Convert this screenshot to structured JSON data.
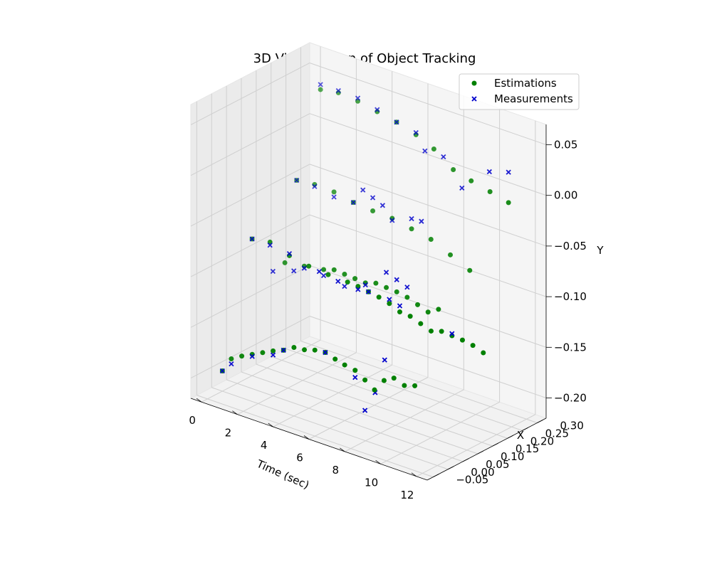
{
  "chart_data": {
    "type": "scatter",
    "projection": "3d",
    "title": "3D Visualization of Object Tracking",
    "xlabel": "Time (sec)",
    "ylabel": "X",
    "zlabel": "Y",
    "xlim": [
      -0.6,
      12.6
    ],
    "ylim": [
      -0.07,
      0.33
    ],
    "zlim": [
      -0.22,
      0.07
    ],
    "xticks": [
      "0",
      "2",
      "4",
      "6",
      "8",
      "10",
      "12"
    ],
    "yticks": [
      "−0.05",
      "0.00",
      "0.05",
      "0.10",
      "0.15",
      "0.20",
      "0.25",
      "0.30"
    ],
    "zticks": [
      "−0.20",
      "−0.15",
      "−0.10",
      "−0.05",
      "0.00",
      "0.05"
    ],
    "grid": true,
    "legend_position": "top-right",
    "colors": {
      "estimations": "#008000",
      "measurements": "#0000cc"
    },
    "series": [
      {
        "name": "Estimations",
        "marker": "circle",
        "points": [
          [
            0.0,
            0.0,
            -0.2
          ],
          [
            0.5,
            0.0,
            -0.185
          ],
          [
            1.0,
            0.005,
            -0.18
          ],
          [
            1.5,
            0.01,
            -0.176
          ],
          [
            2.0,
            0.015,
            -0.172
          ],
          [
            2.5,
            0.02,
            -0.168
          ],
          [
            3.0,
            0.025,
            -0.165
          ],
          [
            3.5,
            0.03,
            -0.16
          ],
          [
            4.0,
            0.035,
            -0.16
          ],
          [
            4.5,
            0.04,
            -0.158
          ],
          [
            5.0,
            0.045,
            -0.158
          ],
          [
            5.5,
            0.048,
            -0.162
          ],
          [
            6.0,
            0.05,
            -0.165
          ],
          [
            6.5,
            0.055,
            -0.168
          ],
          [
            7.0,
            0.058,
            -0.175
          ],
          [
            7.5,
            0.06,
            -0.182
          ],
          [
            8.0,
            0.062,
            -0.17
          ],
          [
            8.5,
            0.065,
            -0.165
          ],
          [
            9.0,
            0.07,
            -0.17
          ],
          [
            9.5,
            0.075,
            -0.168
          ],
          [
            0.0,
            0.1,
            -0.085
          ],
          [
            1.0,
            0.1,
            -0.082
          ],
          [
            2.0,
            0.105,
            -0.09
          ],
          [
            3.0,
            0.11,
            -0.095
          ],
          [
            4.0,
            0.115,
            -0.098
          ],
          [
            5.0,
            0.12,
            -0.1
          ],
          [
            5.5,
            0.125,
            -0.102
          ],
          [
            6.0,
            0.13,
            -0.105
          ],
          [
            6.5,
            0.135,
            -0.108
          ],
          [
            7.0,
            0.14,
            -0.112
          ],
          [
            7.5,
            0.145,
            -0.118
          ],
          [
            8.0,
            0.15,
            -0.12
          ],
          [
            8.5,
            0.155,
            -0.125
          ],
          [
            9.0,
            0.16,
            -0.13
          ],
          [
            9.5,
            0.165,
            -0.128
          ],
          [
            10.0,
            0.17,
            -0.13
          ],
          [
            10.5,
            0.175,
            -0.132
          ],
          [
            11.0,
            0.18,
            -0.135
          ],
          [
            11.5,
            0.185,
            -0.14
          ],
          [
            1.0,
            0.15,
            -0.11
          ],
          [
            2.0,
            0.155,
            -0.108
          ],
          [
            3.0,
            0.16,
            -0.106
          ],
          [
            3.5,
            0.165,
            -0.104
          ],
          [
            4.0,
            0.17,
            -0.106
          ],
          [
            4.5,
            0.175,
            -0.108
          ],
          [
            5.0,
            0.18,
            -0.11
          ],
          [
            5.5,
            0.185,
            -0.108
          ],
          [
            6.0,
            0.19,
            -0.11
          ],
          [
            6.5,
            0.195,
            -0.112
          ],
          [
            7.0,
            0.2,
            -0.115
          ],
          [
            7.5,
            0.205,
            -0.12
          ],
          [
            8.0,
            0.21,
            -0.125
          ],
          [
            8.5,
            0.215,
            -0.12
          ],
          [
            0.0,
            0.25,
            -0.05
          ],
          [
            1.0,
            0.25,
            -0.048
          ],
          [
            2.0,
            0.255,
            -0.05
          ],
          [
            3.0,
            0.26,
            -0.055
          ],
          [
            4.0,
            0.265,
            -0.058
          ],
          [
            5.0,
            0.27,
            -0.06
          ],
          [
            6.0,
            0.275,
            -0.065
          ],
          [
            7.0,
            0.28,
            -0.07
          ],
          [
            8.0,
            0.285,
            -0.08
          ],
          [
            9.0,
            0.29,
            -0.09
          ],
          [
            0.5,
            0.3,
            0.035
          ],
          [
            1.5,
            0.3,
            0.038
          ],
          [
            2.5,
            0.305,
            0.035
          ],
          [
            3.5,
            0.31,
            0.03
          ],
          [
            4.5,
            0.315,
            0.025
          ],
          [
            5.5,
            0.32,
            0.018
          ],
          [
            6.5,
            0.32,
            0.01
          ],
          [
            7.5,
            0.325,
            -0.005
          ],
          [
            8.5,
            0.325,
            -0.01
          ],
          [
            9.5,
            0.328,
            -0.015
          ],
          [
            10.5,
            0.33,
            -0.02
          ]
        ]
      },
      {
        "name": "Measurements",
        "marker": "x",
        "points": [
          [
            0.0,
            0.0,
            -0.2
          ],
          [
            0.5,
            0.0,
            -0.19
          ],
          [
            1.5,
            0.01,
            -0.178
          ],
          [
            2.5,
            0.02,
            -0.172
          ],
          [
            3.0,
            0.025,
            -0.165
          ],
          [
            5.0,
            0.045,
            -0.158
          ],
          [
            6.5,
            0.055,
            -0.175
          ],
          [
            7.0,
            0.058,
            -0.205
          ],
          [
            7.5,
            0.062,
            -0.185
          ],
          [
            8.0,
            0.064,
            -0.15
          ],
          [
            0.0,
            0.1,
            -0.085
          ],
          [
            1.0,
            0.1,
            -0.085
          ],
          [
            2.0,
            0.105,
            -0.088
          ],
          [
            3.5,
            0.115,
            -0.098
          ],
          [
            4.5,
            0.118,
            -0.102
          ],
          [
            5.5,
            0.125,
            -0.105
          ],
          [
            6.0,
            0.13,
            -0.105
          ],
          [
            7.0,
            0.14,
            -0.108
          ],
          [
            7.5,
            0.145,
            -0.112
          ],
          [
            10.0,
            0.17,
            -0.128
          ],
          [
            0.5,
            0.14,
            -0.12
          ],
          [
            1.5,
            0.15,
            -0.115
          ],
          [
            2.0,
            0.155,
            -0.11
          ],
          [
            3.0,
            0.16,
            -0.112
          ],
          [
            4.0,
            0.17,
            -0.118
          ],
          [
            5.0,
            0.18,
            -0.112
          ],
          [
            6.0,
            0.19,
            -0.095
          ],
          [
            6.5,
            0.195,
            -0.1
          ],
          [
            7.0,
            0.2,
            -0.105
          ],
          [
            0.0,
            0.25,
            -0.05
          ],
          [
            1.0,
            0.25,
            -0.05
          ],
          [
            2.0,
            0.255,
            -0.055
          ],
          [
            3.0,
            0.26,
            -0.055
          ],
          [
            3.5,
            0.262,
            -0.04
          ],
          [
            4.0,
            0.265,
            -0.045
          ],
          [
            4.5,
            0.268,
            -0.05
          ],
          [
            5.0,
            0.27,
            -0.062
          ],
          [
            6.0,
            0.275,
            -0.055
          ],
          [
            6.5,
            0.278,
            -0.055
          ],
          [
            0.5,
            0.3,
            0.04
          ],
          [
            1.5,
            0.3,
            0.04
          ],
          [
            2.5,
            0.305,
            0.038
          ],
          [
            3.5,
            0.31,
            0.032
          ],
          [
            4.5,
            0.315,
            0.025
          ],
          [
            5.5,
            0.32,
            0.02
          ],
          [
            6.0,
            0.32,
            0.005
          ],
          [
            7.0,
            0.322,
            0.005
          ],
          [
            8.0,
            0.324,
            -0.02
          ],
          [
            9.5,
            0.326,
            0.005
          ],
          [
            10.5,
            0.33,
            0.01
          ]
        ]
      }
    ]
  }
}
